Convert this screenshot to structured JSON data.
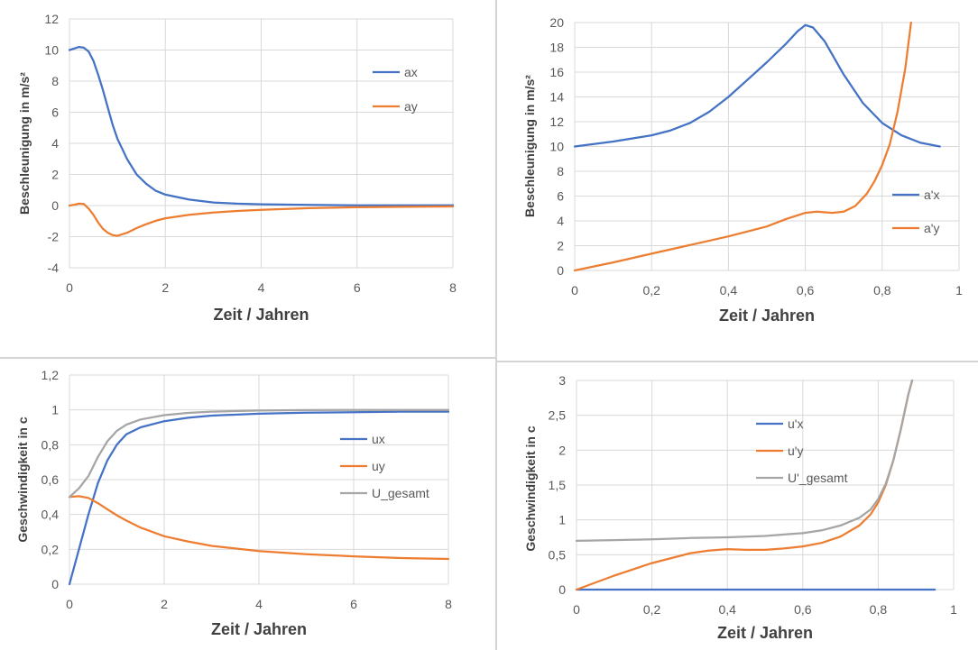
{
  "colors": {
    "blue": "#4472c4",
    "orange": "#ed7d31",
    "gray": "#a5a5a5",
    "grid": "#d9d9d9"
  },
  "chart_data": [
    {
      "type": "line",
      "xlabel": "Zeit / Jahren",
      "ylabel": "Beschleunigung in m/s²",
      "xlim": [
        0,
        8
      ],
      "ylim": [
        -4,
        12
      ],
      "xticks": [
        "0",
        "2",
        "4",
        "6",
        "8"
      ],
      "yticks": [
        "-4",
        "-2",
        "0",
        "2",
        "4",
        "6",
        "8",
        "10",
        "12"
      ],
      "grid": true,
      "legend_position": "right",
      "series": [
        {
          "name": "ax",
          "color": "blue",
          "x": [
            0,
            0.1,
            0.2,
            0.3,
            0.4,
            0.5,
            0.6,
            0.7,
            0.8,
            0.9,
            1.0,
            1.2,
            1.4,
            1.6,
            1.8,
            2.0,
            2.5,
            3.0,
            3.5,
            4.0,
            5.0,
            6.0,
            7.0,
            8.0
          ],
          "y": [
            10,
            10.1,
            10.2,
            10.15,
            9.9,
            9.3,
            8.4,
            7.4,
            6.3,
            5.2,
            4.3,
            3.0,
            2.0,
            1.4,
            0.95,
            0.7,
            0.38,
            0.2,
            0.12,
            0.08,
            0.04,
            0.02,
            0.01,
            0.01
          ]
        },
        {
          "name": "ay",
          "color": "orange",
          "x": [
            0,
            0.1,
            0.2,
            0.3,
            0.4,
            0.5,
            0.6,
            0.7,
            0.8,
            0.9,
            1.0,
            1.2,
            1.4,
            1.6,
            1.8,
            2.0,
            2.5,
            3.0,
            3.5,
            4.0,
            5.0,
            6.0,
            7.0,
            8.0
          ],
          "y": [
            0,
            0.05,
            0.12,
            0.1,
            -0.2,
            -0.6,
            -1.1,
            -1.5,
            -1.75,
            -1.9,
            -1.95,
            -1.75,
            -1.45,
            -1.2,
            -0.98,
            -0.82,
            -0.6,
            -0.45,
            -0.35,
            -0.27,
            -0.17,
            -0.11,
            -0.08,
            -0.06
          ]
        }
      ]
    },
    {
      "type": "line",
      "xlabel": "Zeit / Jahren",
      "ylabel": "Beschleunigung in m/s²",
      "xlim": [
        0,
        1
      ],
      "ylim": [
        0,
        20
      ],
      "xticks": [
        "0",
        "0,2",
        "0,4",
        "0,6",
        "0,8",
        "1"
      ],
      "yticks": [
        "0",
        "2",
        "4",
        "6",
        "8",
        "10",
        "12",
        "14",
        "16",
        "18",
        "20"
      ],
      "grid": true,
      "legend_position": "right",
      "series": [
        {
          "name": "a'x",
          "color": "blue",
          "x": [
            0,
            0.1,
            0.2,
            0.25,
            0.3,
            0.35,
            0.4,
            0.45,
            0.5,
            0.55,
            0.58,
            0.6,
            0.62,
            0.65,
            0.7,
            0.75,
            0.8,
            0.85,
            0.9,
            0.95
          ],
          "y": [
            10,
            10.4,
            10.9,
            11.3,
            11.9,
            12.8,
            14,
            15.4,
            16.8,
            18.3,
            19.3,
            19.8,
            19.6,
            18.5,
            15.8,
            13.5,
            11.9,
            10.9,
            10.3,
            10
          ]
        },
        {
          "name": "a'y",
          "color": "orange",
          "x": [
            0,
            0.1,
            0.2,
            0.3,
            0.4,
            0.5,
            0.55,
            0.6,
            0.63,
            0.67,
            0.7,
            0.73,
            0.76,
            0.78,
            0.8,
            0.82,
            0.84,
            0.86,
            0.875
          ],
          "y": [
            0,
            0.65,
            1.35,
            2.05,
            2.75,
            3.55,
            4.15,
            4.65,
            4.75,
            4.65,
            4.75,
            5.2,
            6.2,
            7.2,
            8.5,
            10.2,
            12.8,
            16.3,
            20
          ]
        }
      ]
    },
    {
      "type": "line",
      "xlabel": "Zeit / Jahren",
      "ylabel": "Geschwindigkeit in c",
      "xlim": [
        0,
        8
      ],
      "ylim": [
        0,
        1.2
      ],
      "xticks": [
        "0",
        "2",
        "4",
        "6",
        "8"
      ],
      "yticks": [
        "0",
        "0,2",
        "0,4",
        "0,6",
        "0,8",
        "1",
        "1,2"
      ],
      "grid": true,
      "legend_position": "right",
      "series": [
        {
          "name": "ux",
          "color": "blue",
          "x": [
            0,
            0.2,
            0.4,
            0.6,
            0.8,
            1.0,
            1.2,
            1.5,
            2.0,
            2.5,
            3,
            4,
            5,
            6,
            7,
            8
          ],
          "y": [
            0,
            0.2,
            0.4,
            0.58,
            0.71,
            0.8,
            0.86,
            0.9,
            0.935,
            0.955,
            0.967,
            0.978,
            0.984,
            0.987,
            0.99,
            0.99
          ]
        },
        {
          "name": "uy",
          "color": "orange",
          "x": [
            0,
            0.2,
            0.4,
            0.6,
            0.8,
            1.0,
            1.2,
            1.5,
            2.0,
            2.5,
            3,
            4,
            5,
            6,
            7,
            8
          ],
          "y": [
            0.5,
            0.505,
            0.495,
            0.465,
            0.43,
            0.395,
            0.365,
            0.325,
            0.275,
            0.245,
            0.22,
            0.19,
            0.172,
            0.16,
            0.15,
            0.145
          ]
        },
        {
          "name": "U_gesamt",
          "color": "gray",
          "x": [
            0,
            0.2,
            0.4,
            0.6,
            0.8,
            1.0,
            1.2,
            1.5,
            2.0,
            2.5,
            3,
            4,
            5,
            6,
            7,
            8
          ],
          "y": [
            0.5,
            0.55,
            0.62,
            0.73,
            0.82,
            0.88,
            0.915,
            0.945,
            0.97,
            0.983,
            0.99,
            0.996,
            0.999,
            1.0,
            1.0,
            1.0
          ]
        }
      ]
    },
    {
      "type": "line",
      "xlabel": "Zeit / Jahren",
      "ylabel": "Geschwindigkeit in c",
      "xlim": [
        0,
        1
      ],
      "ylim": [
        0,
        3
      ],
      "xticks": [
        "0",
        "0,2",
        "0,4",
        "0,6",
        "0,8",
        "1"
      ],
      "yticks": [
        "0",
        "0,5",
        "1",
        "1,5",
        "2",
        "2,5",
        "3"
      ],
      "grid": true,
      "legend_position": "center",
      "series": [
        {
          "name": "u'x",
          "color": "blue",
          "x": [
            0,
            0.2,
            0.4,
            0.6,
            0.8,
            0.95
          ],
          "y": [
            0,
            0,
            0,
            0,
            0,
            0
          ]
        },
        {
          "name": "u'y",
          "color": "orange",
          "x": [
            0,
            0.1,
            0.2,
            0.3,
            0.35,
            0.4,
            0.45,
            0.5,
            0.55,
            0.6,
            0.65,
            0.7,
            0.75,
            0.78,
            0.8,
            0.82,
            0.84,
            0.86,
            0.88,
            0.89
          ],
          "y": [
            0,
            0.2,
            0.38,
            0.52,
            0.56,
            0.58,
            0.57,
            0.57,
            0.59,
            0.62,
            0.67,
            0.76,
            0.92,
            1.08,
            1.25,
            1.5,
            1.85,
            2.3,
            2.8,
            3.0
          ]
        },
        {
          "name": "U'_gesamt",
          "color": "gray",
          "x": [
            0,
            0.1,
            0.2,
            0.3,
            0.4,
            0.5,
            0.55,
            0.6,
            0.65,
            0.7,
            0.75,
            0.78,
            0.8,
            0.82,
            0.84,
            0.86,
            0.88,
            0.89
          ],
          "y": [
            0.7,
            0.71,
            0.72,
            0.74,
            0.75,
            0.77,
            0.79,
            0.81,
            0.85,
            0.92,
            1.03,
            1.15,
            1.3,
            1.52,
            1.85,
            2.3,
            2.8,
            3.0
          ]
        }
      ]
    }
  ]
}
